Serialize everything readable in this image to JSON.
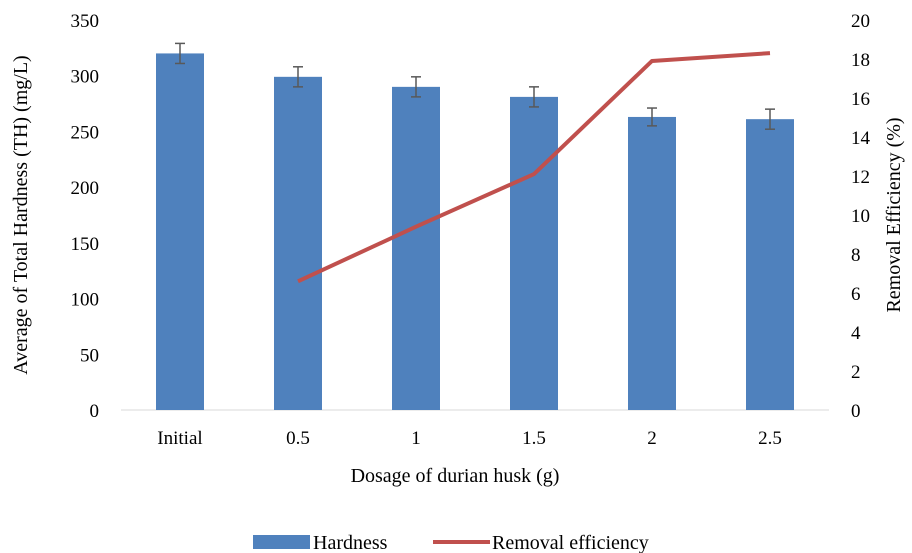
{
  "chart_data": {
    "type": "bar",
    "categories": [
      "Initial",
      "0.5",
      "1",
      "1.5",
      "2",
      "2.5"
    ],
    "series": [
      {
        "name": "Hardness",
        "chart": "bar",
        "axis": "left",
        "values": [
          320,
          299,
          290,
          281,
          263,
          261
        ],
        "error": [
          9,
          9,
          9,
          9,
          8,
          9
        ],
        "color": "#4F81BD"
      },
      {
        "name": "Removal efficiency",
        "chart": "line",
        "axis": "right",
        "values": [
          null,
          6.6,
          9.4,
          12.1,
          17.9,
          18.3
        ],
        "color": "#C0504D"
      }
    ],
    "xlabel": "Dosage of durian husk (g)",
    "ylabel": "Average of Total Hardness (TH) (mg/L)",
    "y2label": "Removal Efficiency (%)",
    "ylim": [
      0,
      350
    ],
    "y2lim": [
      0,
      20
    ],
    "yticks": [
      "0",
      "50",
      "100",
      "150",
      "200",
      "250",
      "300",
      "350"
    ],
    "y2ticks": [
      "0",
      "2",
      "4",
      "6",
      "8",
      "10",
      "12",
      "14",
      "16",
      "18",
      "20"
    ],
    "grid": false,
    "legend_position": "bottom"
  }
}
